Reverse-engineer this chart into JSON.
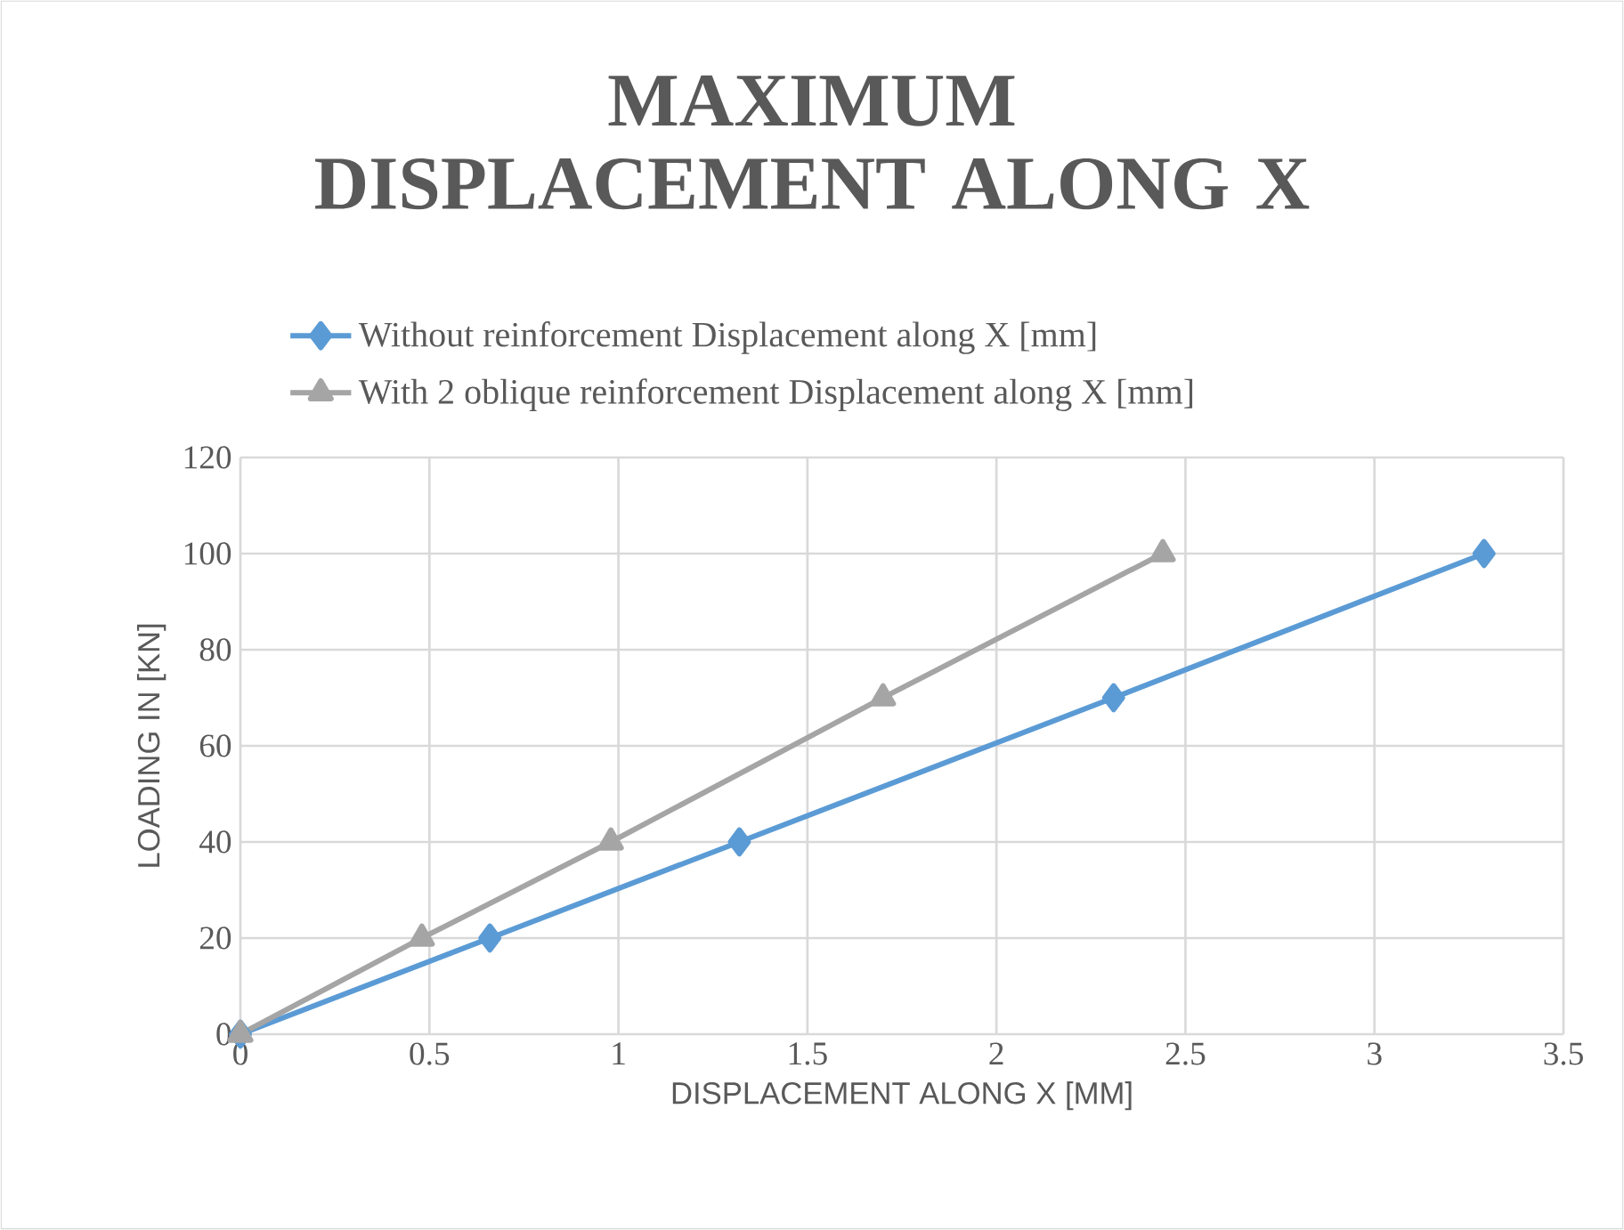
{
  "chart_data": {
    "type": "line",
    "title": "MAXIMUM DISPLACEMENT ALONG X",
    "xlabel": "DISPLACEMENT ALONG X [MM]",
    "ylabel": "LOADING IN [KN]",
    "series": [
      {
        "name": "Without reinforcement  Displacement along X [mm]",
        "color": "#5b9bd5",
        "marker": "diamond",
        "x": [
          0,
          0.66,
          1.32,
          2.31,
          3.29
        ],
        "values": [
          0,
          20,
          40,
          70,
          100
        ]
      },
      {
        "name": "With 2 oblique reinforcement Displacement along X [mm]",
        "color": "#a5a5a5",
        "marker": "triangle",
        "x": [
          0,
          0.48,
          0.98,
          1.7,
          2.44
        ],
        "values": [
          0,
          20,
          40,
          70,
          100
        ]
      }
    ],
    "xlim": [
      0,
      3.5
    ],
    "xticks": [
      0,
      0.5,
      1,
      1.5,
      2,
      2.5,
      3,
      3.5
    ],
    "ylim": [
      0,
      120
    ],
    "yticks": [
      0,
      20,
      40,
      60,
      80,
      100,
      120
    ],
    "grid": true,
    "legend": "top",
    "line_style": "solid"
  }
}
